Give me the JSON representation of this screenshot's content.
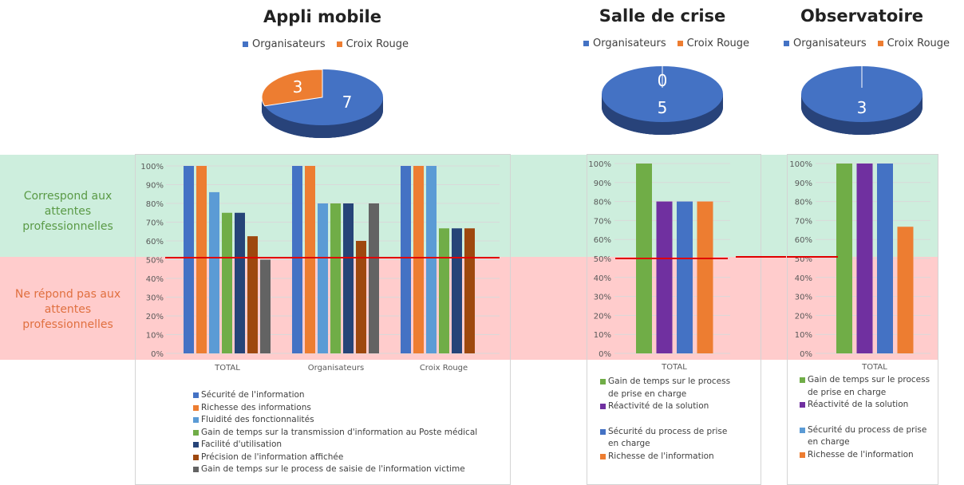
{
  "zones": {
    "top": "Correspond aux attentes professionnelles",
    "bottom": "Ne répond pas aux attentes professionnelles",
    "top_color": "#cdeedd",
    "bottom_color": "#ffcccc",
    "threshold_color": "#e00000"
  },
  "pies": [
    {
      "title": "Appli mobile",
      "legend": [
        "Organisateurs",
        "Croix Rouge"
      ],
      "values": [
        7,
        3
      ],
      "labels": [
        "7",
        "3"
      ],
      "colors": [
        "#4472c4",
        "#ed7d31"
      ]
    },
    {
      "title": "Salle de crise",
      "legend": [
        "Organisateurs",
        "Croix Rouge"
      ],
      "values": [
        5,
        0
      ],
      "labels": [
        "5",
        "0"
      ],
      "colors": [
        "#4472c4",
        "#ed7d31"
      ]
    },
    {
      "title": "Observatoire",
      "legend": [
        "Organisateurs",
        "Croix Rouge"
      ],
      "values": [
        3,
        0
      ],
      "labels": [
        "3",
        ""
      ],
      "colors": [
        "#4472c4",
        "#ed7d31"
      ]
    }
  ],
  "chart_data": [
    {
      "type": "bar",
      "yticks": [
        "0%",
        "10%",
        "20%",
        "30%",
        "40%",
        "50%",
        "60%",
        "70%",
        "80%",
        "90%",
        "100%"
      ],
      "ylim": [
        0,
        100
      ],
      "threshold": 50,
      "categories": [
        "TOTAL",
        "Organisateurs",
        "Croix Rouge"
      ],
      "series": [
        {
          "name": "Sécurité de l'information",
          "color": "#4472c4",
          "values": [
            100,
            100,
            100
          ]
        },
        {
          "name": "Richesse des informations",
          "color": "#ed7d31",
          "values": [
            100,
            100,
            100
          ]
        },
        {
          "name": "Fluidité des fonctionnalités",
          "color": "#5b9bd5",
          "values": [
            86,
            80,
            100
          ]
        },
        {
          "name": "Gain de temps sur la transmission d'information au Poste médical",
          "color": "#70ad47",
          "values": [
            75,
            80,
            66.7
          ]
        },
        {
          "name": "Facilité d'utilisation",
          "color": "#264478",
          "values": [
            75,
            80,
            66.7
          ]
        },
        {
          "name": "Précision de l'information affichée",
          "color": "#9e480e",
          "values": [
            62.5,
            60,
            66.7
          ]
        },
        {
          "name": "Gain de temps sur le process de saisie de l'information victime",
          "color": "#636363",
          "values": [
            50,
            80,
            null
          ]
        }
      ]
    },
    {
      "type": "bar",
      "yticks": [
        "0%",
        "10%",
        "20%",
        "30%",
        "40%",
        "50%",
        "60%",
        "70%",
        "80%",
        "90%",
        "100%"
      ],
      "ylim": [
        0,
        100
      ],
      "threshold": 50,
      "categories": [
        "TOTAL"
      ],
      "series": [
        {
          "name": "Gain de temps sur le process de prise en charge",
          "color": "#70ad47",
          "values": [
            100
          ]
        },
        {
          "name": "Réactivité de la solution",
          "color": "#7030a0",
          "values": [
            80
          ]
        },
        {
          "name": "Sécurité du process de prise en charge",
          "color": "#4472c4",
          "values": [
            80
          ]
        },
        {
          "name": "Richesse de l'information",
          "color": "#ed7d31",
          "values": [
            80
          ]
        }
      ]
    },
    {
      "type": "bar",
      "yticks": [
        "0%",
        "10%",
        "20%",
        "30%",
        "40%",
        "50%",
        "60%",
        "70%",
        "80%",
        "90%",
        "100%"
      ],
      "ylim": [
        0,
        100
      ],
      "threshold": 50,
      "categories": [
        "TOTAL"
      ],
      "series": [
        {
          "name": "Gain de temps sur le process de prise en charge",
          "color": "#70ad47",
          "values": [
            100
          ]
        },
        {
          "name": "Réactivité de la solution",
          "color": "#7030a0",
          "values": [
            100
          ]
        },
        {
          "name": "Sécurité du process de prise en charge",
          "color": "#5b9bd5",
          "legend_color": "#5b9bd5",
          "bar_color": "#4472c4",
          "values": [
            100
          ]
        },
        {
          "name": "Richesse de l'information",
          "color": "#ed7d31",
          "values": [
            66.7
          ]
        }
      ]
    }
  ]
}
